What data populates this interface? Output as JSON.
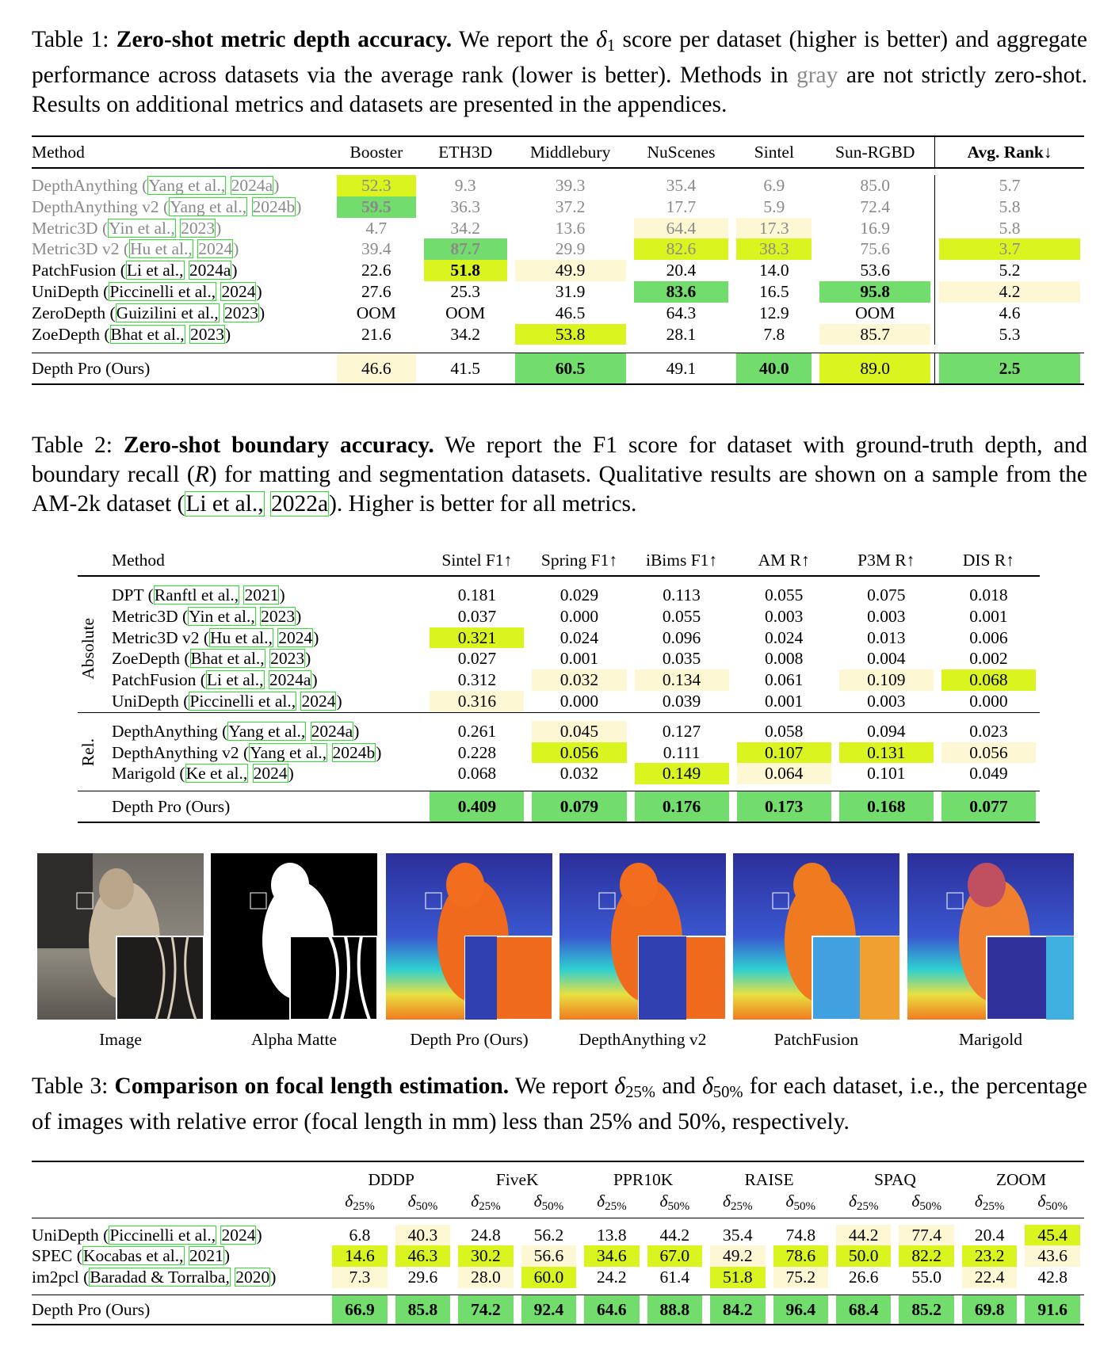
{
  "palette": {
    "green": "#72dc6c",
    "lime": "#d9f41e",
    "pale": "#fdf8d3"
  },
  "table1": {
    "caption": [
      {
        "text": "Table 1: "
      },
      {
        "text": "Zero-shot metric depth accuracy.",
        "style": "bold"
      },
      {
        "text": " We report the "
      },
      {
        "text": "δ",
        "style": "math"
      },
      {
        "text": "1",
        "style": "sub"
      },
      {
        "text": " score per dataset (higher is better) and aggregate performance across datasets via the average rank (lower is better). Methods in "
      },
      {
        "text": "gray",
        "style": "gray"
      },
      {
        "text": " are not strictly zero-shot. Results on additional metrics and datasets are presented in the appendices."
      }
    ],
    "columns": [
      "Method",
      "Booster",
      "ETH3D",
      "Middlebury",
      "NuScenes",
      "Sintel",
      "Sun-RGBD",
      "Avg. Rank↓"
    ],
    "rows": [
      {
        "name": "DepthAnything (",
        "links": [
          "Yang et al.,",
          "2024a"
        ],
        "after": ")",
        "gray": true,
        "values": [
          "52.3",
          "9.3",
          "39.3",
          "35.4",
          "6.9",
          "85.0",
          "5.7"
        ],
        "colors": [
          "lime",
          null,
          null,
          null,
          null,
          null,
          null
        ],
        "bold": []
      },
      {
        "name": "DepthAnything v2 (",
        "links": [
          "Yang et al.,",
          "2024b"
        ],
        "after": ")",
        "gray": true,
        "values": [
          "59.5",
          "36.3",
          "37.2",
          "17.7",
          "5.9",
          "72.4",
          "5.8"
        ],
        "colors": [
          "green",
          null,
          null,
          null,
          null,
          null,
          null
        ],
        "bold": [
          0
        ]
      },
      {
        "name": "Metric3D (",
        "links": [
          "Yin et al.,",
          "2023"
        ],
        "after": ")",
        "gray": true,
        "values": [
          "4.7",
          "34.2",
          "13.6",
          "64.4",
          "17.3",
          "16.9",
          "5.8"
        ],
        "colors": [
          null,
          null,
          null,
          "pale",
          "pale",
          null,
          null
        ],
        "bold": []
      },
      {
        "name": "Metric3D v2 (",
        "links": [
          "Hu et al.,",
          "2024"
        ],
        "after": ")",
        "gray": true,
        "values": [
          "39.4",
          "87.7",
          "29.9",
          "82.6",
          "38.3",
          "75.6",
          "3.7"
        ],
        "colors": [
          null,
          "green",
          null,
          "lime",
          "lime",
          null,
          "lime"
        ],
        "bold": [
          1
        ]
      },
      {
        "name": "PatchFusion (",
        "links": [
          "Li et al.,",
          "2024a"
        ],
        "after": ")",
        "values": [
          "22.6",
          "51.8",
          "49.9",
          "20.4",
          "14.0",
          "53.6",
          "5.2"
        ],
        "colors": [
          null,
          "lime",
          "pale",
          null,
          null,
          null,
          null
        ],
        "bold": [
          1
        ]
      },
      {
        "name": "UniDepth (",
        "links": [
          "Piccinelli et al.,",
          "2024"
        ],
        "after": ")",
        "values": [
          "27.6",
          "25.3",
          "31.9",
          "83.6",
          "16.5",
          "95.8",
          "4.2"
        ],
        "colors": [
          null,
          null,
          null,
          "green",
          null,
          "green",
          "pale"
        ],
        "bold": [
          3,
          5
        ]
      },
      {
        "name": "ZeroDepth (",
        "links": [
          "Guizilini et al.,",
          "2023"
        ],
        "after": ")",
        "values": [
          "OOM",
          "OOM",
          "46.5",
          "64.3",
          "12.9",
          "OOM",
          "4.6"
        ],
        "colors": [
          null,
          null,
          null,
          null,
          null,
          null,
          null
        ],
        "bold": []
      },
      {
        "name": "ZoeDepth (",
        "links": [
          "Bhat et al.,",
          "2023"
        ],
        "after": ")",
        "values": [
          "21.6",
          "34.2",
          "53.8",
          "28.1",
          "7.8",
          "85.7",
          "5.3"
        ],
        "colors": [
          null,
          null,
          "lime",
          null,
          null,
          "pale",
          null
        ],
        "bold": []
      }
    ],
    "footer": {
      "name": "Depth Pro (Ours)",
      "values": [
        "46.6",
        "41.5",
        "60.5",
        "49.1",
        "40.0",
        "89.0",
        "2.5"
      ],
      "colors": [
        "pale",
        null,
        "green",
        null,
        "green",
        "lime",
        "green"
      ],
      "bold": [
        2,
        4,
        6
      ]
    }
  },
  "table2": {
    "caption": [
      {
        "text": "Table 2: "
      },
      {
        "text": "Zero-shot boundary accuracy.",
        "style": "bold"
      },
      {
        "text": " We report the F1 score for dataset with ground-truth depth, and boundary recall ("
      },
      {
        "text": "R",
        "style": "math"
      },
      {
        "text": ") for matting and segmentation datasets. Qualitative results are shown on a sample from the AM-2k dataset ("
      },
      {
        "text": "Li et al.,",
        "style": "link"
      },
      {
        "text": " "
      },
      {
        "text": "2022a",
        "style": "link"
      },
      {
        "text": "). Higher is better for all metrics."
      }
    ],
    "columns": [
      "Method",
      "Sintel F1↑",
      "Spring F1↑",
      "iBims F1↑",
      "AM R↑",
      "P3M R↑",
      "DIS R↑"
    ],
    "groups": [
      {
        "label": "Absolute",
        "rows": [
          {
            "name": "DPT (",
            "links": [
              "Ranftl et al.,",
              "2021"
            ],
            "after": ")",
            "values": [
              "0.181",
              "0.029",
              "0.113",
              "0.055",
              "0.075",
              "0.018"
            ],
            "colors": [
              null,
              null,
              null,
              null,
              null,
              null
            ]
          },
          {
            "name": "Metric3D (",
            "links": [
              "Yin et al.,",
              "2023"
            ],
            "after": ")",
            "values": [
              "0.037",
              "0.000",
              "0.055",
              "0.003",
              "0.003",
              "0.001"
            ],
            "colors": [
              null,
              null,
              null,
              null,
              null,
              null
            ]
          },
          {
            "name": "Metric3D v2 (",
            "links": [
              "Hu et al.,",
              "2024"
            ],
            "after": ")",
            "values": [
              "0.321",
              "0.024",
              "0.096",
              "0.024",
              "0.013",
              "0.006"
            ],
            "colors": [
              "lime",
              null,
              null,
              null,
              null,
              null
            ]
          },
          {
            "name": "ZoeDepth (",
            "links": [
              "Bhat et al.,",
              "2023"
            ],
            "after": ")",
            "values": [
              "0.027",
              "0.001",
              "0.035",
              "0.008",
              "0.004",
              "0.002"
            ],
            "colors": [
              null,
              null,
              null,
              null,
              null,
              null
            ]
          },
          {
            "name": "PatchFusion (",
            "links": [
              "Li et al.,",
              "2024a"
            ],
            "after": ")",
            "values": [
              "0.312",
              "0.032",
              "0.134",
              "0.061",
              "0.109",
              "0.068"
            ],
            "colors": [
              null,
              "pale",
              "pale",
              null,
              "pale",
              "lime"
            ]
          },
          {
            "name": "UniDepth (",
            "links": [
              "Piccinelli et al.,",
              "2024"
            ],
            "after": ")",
            "values": [
              "0.316",
              "0.000",
              "0.039",
              "0.001",
              "0.003",
              "0.000"
            ],
            "colors": [
              "pale",
              null,
              null,
              null,
              null,
              null
            ]
          }
        ]
      },
      {
        "label": "Rel.",
        "rows": [
          {
            "name": "DepthAnything (",
            "links": [
              "Yang et al.,",
              "2024a"
            ],
            "after": ")",
            "values": [
              "0.261",
              "0.045",
              "0.127",
              "0.058",
              "0.094",
              "0.023"
            ],
            "colors": [
              null,
              "pale",
              null,
              null,
              null,
              null
            ]
          },
          {
            "name": "DepthAnything v2 (",
            "links": [
              "Yang et al.,",
              "2024b"
            ],
            "after": ")",
            "values": [
              "0.228",
              "0.056",
              "0.111",
              "0.107",
              "0.131",
              "0.056"
            ],
            "colors": [
              null,
              "lime",
              null,
              "lime",
              "lime",
              "pale"
            ]
          },
          {
            "name": "Marigold (",
            "links": [
              "Ke et al.,",
              "2024"
            ],
            "after": ")",
            "values": [
              "0.068",
              "0.032",
              "0.149",
              "0.064",
              "0.101",
              "0.049"
            ],
            "colors": [
              null,
              null,
              "lime",
              "pale",
              null,
              null
            ]
          }
        ]
      }
    ],
    "footer": {
      "name": "Depth Pro (Ours)",
      "values": [
        "0.409",
        "0.079",
        "0.176",
        "0.173",
        "0.168",
        "0.077"
      ],
      "colors": [
        "green",
        "green",
        "green",
        "green",
        "green",
        "green"
      ],
      "bold": [
        0,
        1,
        2,
        3,
        4,
        5
      ]
    }
  },
  "figure": {
    "labels": [
      "Image",
      "Alpha Matte",
      "Depth Pro (Ours)",
      "DepthAnything v2",
      "PatchFusion",
      "Marigold"
    ]
  },
  "table3": {
    "caption": [
      {
        "text": "Table 3: "
      },
      {
        "text": "Comparison on focal length estimation.",
        "style": "bold"
      },
      {
        "text": " We report "
      },
      {
        "text": "δ",
        "style": "math"
      },
      {
        "text": "25%",
        "style": "sub"
      },
      {
        "text": " and "
      },
      {
        "text": "δ",
        "style": "math"
      },
      {
        "text": "50%",
        "style": "sub"
      },
      {
        "text": " for each dataset, i.e., the percentage of images with relative error (focal length in mm) less than 25% and 50%, respectively."
      }
    ],
    "datasets": [
      "DDDP",
      "FiveK",
      "PPR10K",
      "RAISE",
      "SPAQ",
      "ZOOM"
    ],
    "sub_headers": [
      {
        "base": "δ",
        "sub": "25%"
      },
      {
        "base": "δ",
        "sub": "50%"
      }
    ],
    "rows": [
      {
        "name": "UniDepth (",
        "links": [
          "Piccinelli et al.,",
          "2024"
        ],
        "after": ")",
        "values": [
          "6.8",
          "40.3",
          "24.8",
          "56.2",
          "13.8",
          "44.2",
          "35.4",
          "74.8",
          "44.2",
          "77.4",
          "20.4",
          "45.4"
        ],
        "colors": [
          null,
          "pale",
          null,
          null,
          null,
          null,
          null,
          null,
          "pale",
          "pale",
          null,
          "lime"
        ]
      },
      {
        "name": "SPEC (",
        "links": [
          "Kocabas et al.,",
          "2021"
        ],
        "after": ")",
        "values": [
          "14.6",
          "46.3",
          "30.2",
          "56.6",
          "34.6",
          "67.0",
          "49.2",
          "78.6",
          "50.0",
          "82.2",
          "23.2",
          "43.6"
        ],
        "colors": [
          "lime",
          "lime",
          "lime",
          "pale",
          "lime",
          "lime",
          "pale",
          "lime",
          "lime",
          "lime",
          "lime",
          "pale"
        ]
      },
      {
        "name": "im2pcl (",
        "links": [
          "Baradad & Torralba,",
          "2020"
        ],
        "after": ")",
        "values": [
          "7.3",
          "29.6",
          "28.0",
          "60.0",
          "24.2",
          "61.4",
          "51.8",
          "75.2",
          "26.6",
          "55.0",
          "22.4",
          "42.8"
        ],
        "colors": [
          "pale",
          null,
          "pale",
          "lime",
          null,
          null,
          "lime",
          "pale",
          null,
          null,
          "pale",
          null
        ]
      }
    ],
    "footer": {
      "name": "Depth Pro (Ours)",
      "values": [
        "66.9",
        "85.8",
        "74.2",
        "92.4",
        "64.6",
        "88.8",
        "84.2",
        "96.4",
        "68.4",
        "85.2",
        "69.8",
        "91.6"
      ],
      "colors": [
        "green",
        "green",
        "green",
        "green",
        "green",
        "green",
        "green",
        "green",
        "green",
        "green",
        "green",
        "green"
      ],
      "bold": [
        0,
        1,
        2,
        3,
        4,
        5,
        6,
        7,
        8,
        9,
        10,
        11
      ]
    }
  }
}
